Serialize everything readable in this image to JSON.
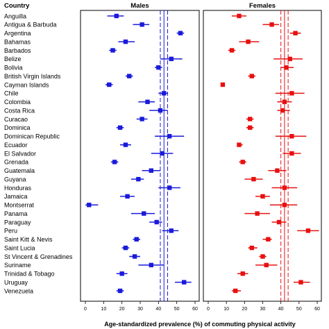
{
  "chart_data": {
    "type": "forest",
    "header_country": "Country",
    "xlabel": "Age-standardized prevalence (%) of commuting physical activity",
    "xlim": [
      0,
      60
    ],
    "ticks": [
      0,
      10,
      20,
      30,
      40,
      50,
      60
    ],
    "grid": false,
    "countries": [
      "Anguilla",
      "Antigua & Barbuda",
      "Argentina",
      "Bahamas",
      "Barbados",
      "Belize",
      "Bolivia",
      "British Virgin Islands",
      "Cayman Islands",
      "Chile",
      "Colombia",
      "Costa Rica",
      "Curacao",
      "Dominica",
      "Dominican Republic",
      "Ecuador",
      "El Salvador",
      "Grenada",
      "Guatemala",
      "Guyana",
      "Honduras",
      "Jamaica",
      "Montserrat",
      "Panama",
      "Paraguay",
      "Peru",
      "Saint Kitt & Nevis",
      "Saint Lucia",
      "St Vincent & Grenadines",
      "Suriname",
      "Trinidad & Tobago",
      "Uruguay",
      "Venezuela"
    ],
    "panels": [
      {
        "title": "Males",
        "color": "#1a1adb",
        "pooled": {
          "estimate": 43,
          "lower": 41,
          "upper": 45
        },
        "estimates": [
          17,
          31,
          52,
          22,
          15,
          47,
          40,
          24,
          13,
          43,
          34,
          41,
          31,
          19,
          46,
          22,
          42,
          16,
          36,
          29,
          46,
          23,
          2,
          32,
          39,
          47,
          28,
          22,
          27,
          36,
          20,
          54,
          19
        ],
        "lower": [
          12,
          26,
          50,
          18,
          13,
          41,
          38,
          22,
          11,
          40,
          29,
          35,
          28,
          17,
          38,
          19,
          36,
          14,
          31,
          25,
          40,
          19,
          0,
          25,
          35,
          42,
          26,
          20,
          24,
          29,
          17,
          49,
          17
        ],
        "upper": [
          21,
          35,
          54,
          27,
          17,
          53,
          42,
          26,
          15,
          45,
          38,
          45,
          34,
          21,
          54,
          25,
          48,
          18,
          41,
          32,
          52,
          27,
          7,
          38,
          42,
          51,
          30,
          24,
          30,
          43,
          23,
          58,
          21
        ]
      },
      {
        "title": "Females",
        "color": "#e81010",
        "pooled": {
          "estimate": 42,
          "lower": 40,
          "upper": 44
        },
        "estimates": [
          17,
          35,
          48,
          22,
          13,
          45,
          43,
          24,
          8,
          46,
          42,
          41,
          23,
          23,
          46,
          17,
          46,
          19,
          38,
          25,
          42,
          30,
          42,
          27,
          39,
          55,
          33,
          24,
          30,
          32,
          19,
          51,
          15
        ],
        "lower": [
          13,
          30,
          45,
          17,
          11,
          36,
          40,
          22,
          7,
          37,
          38,
          38,
          21,
          21,
          37,
          16,
          41,
          17,
          33,
          20,
          35,
          26,
          34,
          20,
          35,
          49,
          30,
          22,
          28,
          26,
          16,
          47,
          13
        ],
        "upper": [
          21,
          39,
          51,
          28,
          15,
          52,
          47,
          26,
          9,
          53,
          46,
          45,
          25,
          25,
          54,
          19,
          51,
          21,
          43,
          30,
          49,
          34,
          49,
          34,
          43,
          61,
          35,
          27,
          32,
          38,
          22,
          56,
          18
        ]
      }
    ]
  }
}
